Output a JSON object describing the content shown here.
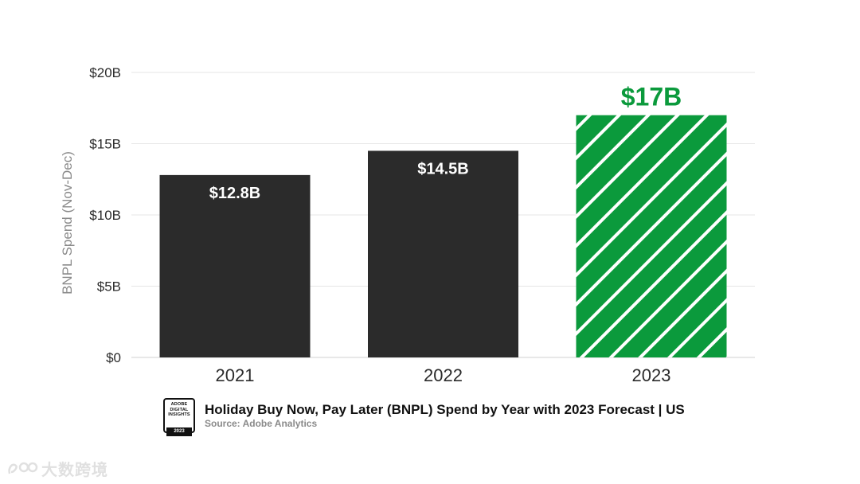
{
  "chart_data": {
    "type": "bar",
    "categories": [
      "2021",
      "2022",
      "2023"
    ],
    "values": [
      12.8,
      14.5,
      17
    ],
    "value_labels": [
      "$12.8B",
      "$14.5B",
      "$17B"
    ],
    "forecast": [
      false,
      false,
      true
    ],
    "ylabel": "BNPL Spend (Nov-Dec)",
    "xlabel": "",
    "ylim": [
      0,
      20
    ],
    "yticks": [
      0,
      5,
      10,
      15,
      20
    ],
    "ytick_labels": [
      "$0",
      "$5B",
      "$10B",
      "$15B",
      "$20B"
    ],
    "grid": true,
    "title": "Holiday Buy Now, Pay Later (BNPL) Spend by Year with 2023 Forecast | US",
    "source": "Source: Adobe Analytics",
    "colors": {
      "bar": "#2b2b2b",
      "forecast": "#0b9a3c",
      "grid": "#e6e6e6",
      "stripe": "#ffffff"
    }
  },
  "badge": {
    "lines": [
      "ADOBE",
      "DIGITAL",
      "INSIGHTS"
    ],
    "year": "2023"
  },
  "watermark": {
    "icon": "cross-border-logo-icon",
    "text": "大数跨境"
  }
}
